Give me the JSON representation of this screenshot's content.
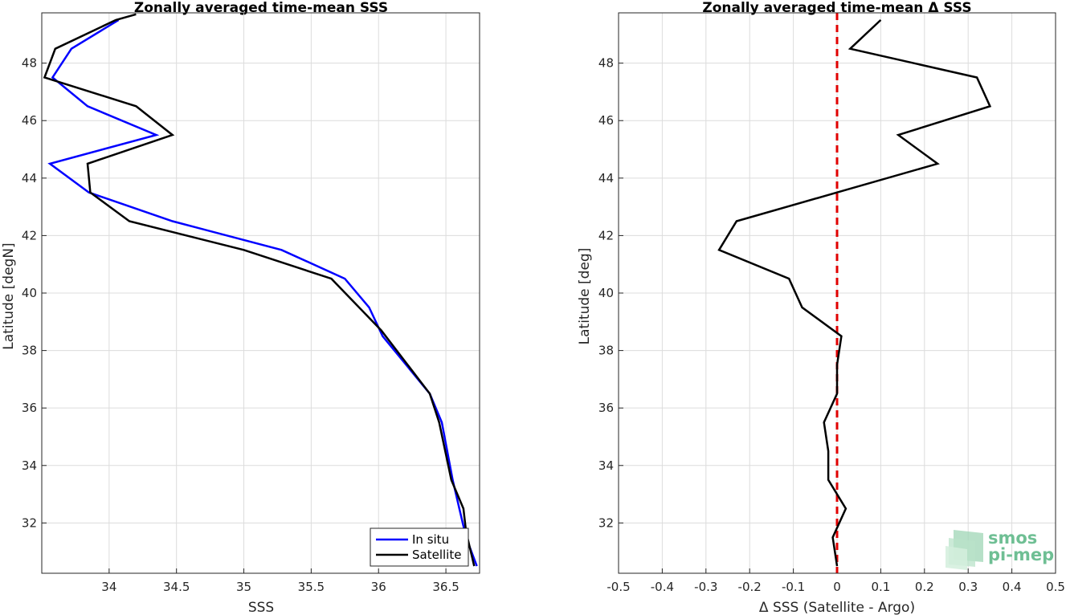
{
  "chart_data": [
    {
      "type": "line",
      "title": "Zonally averaged time-mean SSS",
      "xlabel": "SSS",
      "ylabel": "Latitude [degN]",
      "xlim": [
        33.5,
        36.75
      ],
      "ylim": [
        30.25,
        49.75
      ],
      "xticks": [
        "34",
        "34.5",
        "35",
        "35.5",
        "36",
        "36.5"
      ],
      "yticks": [
        "32",
        "34",
        "36",
        "38",
        "40",
        "42",
        "44",
        "46",
        "48"
      ],
      "grid": true,
      "legend": "bottom-right",
      "series": [
        {
          "name": "In situ",
          "color": "#0000ff",
          "points": [
            [
              34.07,
              49.5
            ],
            [
              33.72,
              48.5
            ],
            [
              33.58,
              47.5
            ],
            [
              33.84,
              46.5
            ],
            [
              34.35,
              45.5
            ],
            [
              33.56,
              44.5
            ],
            [
              33.85,
              43.5
            ],
            [
              34.47,
              42.5
            ],
            [
              35.28,
              41.5
            ],
            [
              35.75,
              40.5
            ],
            [
              35.93,
              39.5
            ],
            [
              36.03,
              38.5
            ],
            [
              36.38,
              36.5
            ],
            [
              36.47,
              35.5
            ],
            [
              36.55,
              33.5
            ],
            [
              36.6,
              32.5
            ],
            [
              36.65,
              31.5
            ],
            [
              36.73,
              30.5
            ]
          ]
        },
        {
          "name": "Satellite",
          "color": "#000000",
          "points": [
            [
              34.2,
              49.7
            ],
            [
              34.05,
              49.5
            ],
            [
              33.6,
              48.5
            ],
            [
              33.52,
              47.5
            ],
            [
              34.2,
              46.5
            ],
            [
              34.47,
              45.5
            ],
            [
              33.84,
              44.5
            ],
            [
              33.86,
              43.5
            ],
            [
              34.15,
              42.5
            ],
            [
              35.0,
              41.5
            ],
            [
              35.65,
              40.5
            ],
            [
              36.02,
              38.7
            ],
            [
              36.38,
              36.5
            ],
            [
              36.45,
              35.5
            ],
            [
              36.54,
              33.5
            ],
            [
              36.63,
              32.5
            ],
            [
              36.65,
              31.7
            ],
            [
              36.71,
              30.5
            ]
          ]
        }
      ]
    },
    {
      "type": "line",
      "title": "Zonally averaged time-mean Δ SSS",
      "xlabel": "Δ SSS (Satellite - Argo)",
      "ylabel": "Latitude [deg]",
      "xlim": [
        -0.5,
        0.5
      ],
      "ylim": [
        30.25,
        49.75
      ],
      "xticks": [
        "-0.5",
        "-0.4",
        "-0.3",
        "-0.2",
        "-0.1",
        "0",
        "0.1",
        "0.2",
        "0.3",
        "0.4",
        "0.5"
      ],
      "yticks": [
        "32",
        "34",
        "36",
        "38",
        "40",
        "42",
        "44",
        "46",
        "48"
      ],
      "grid": true,
      "reference_line": {
        "x": 0,
        "color": "#e00000",
        "style": "dashed"
      },
      "series": [
        {
          "color": "#000000",
          "points": [
            [
              0.1,
              49.5
            ],
            [
              0.03,
              48.5
            ],
            [
              0.32,
              47.5
            ],
            [
              0.35,
              46.5
            ],
            [
              0.14,
              45.5
            ],
            [
              0.23,
              44.5
            ],
            [
              0.0,
              43.5
            ],
            [
              -0.23,
              42.5
            ],
            [
              -0.27,
              41.5
            ],
            [
              -0.11,
              40.5
            ],
            [
              -0.08,
              39.5
            ],
            [
              0.01,
              38.5
            ],
            [
              0.0,
              37.5
            ],
            [
              0.0,
              36.5
            ],
            [
              -0.03,
              35.5
            ],
            [
              -0.02,
              34.5
            ],
            [
              -0.02,
              33.5
            ],
            [
              0.02,
              32.5
            ],
            [
              -0.01,
              31.5
            ],
            [
              0.0,
              30.5
            ]
          ]
        }
      ]
    }
  ],
  "legend": {
    "in_situ": "In situ",
    "satellite": "Satellite"
  },
  "logo": {
    "line1": "smos",
    "line2": "pi-mep"
  }
}
